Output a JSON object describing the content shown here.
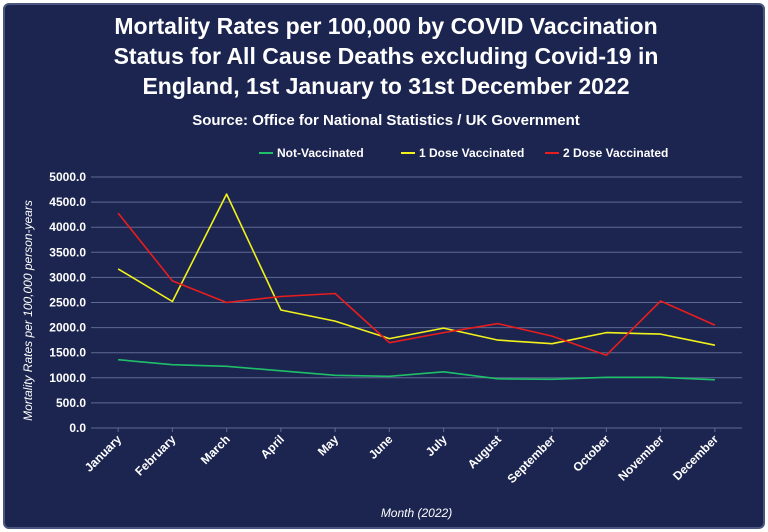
{
  "colors": {
    "background": "#1b2550",
    "grid": "#5f6a92",
    "text": "#ffffff"
  },
  "chart_data": {
    "type": "line",
    "title_lines": [
      "Mortality Rates per 100,000 by COVID Vaccination",
      "Status for All Cause Deaths excluding Covid-19 in",
      "England, 1st January to 31st December 2022"
    ],
    "subtitle": "Source: Office for National Statistics / UK Government",
    "xlabel": "Month (2022)",
    "ylabel": "Mortality Rates per 100,000 person-years",
    "categories": [
      "January",
      "February",
      "March",
      "April",
      "May",
      "June",
      "July",
      "August",
      "September",
      "October",
      "November",
      "December"
    ],
    "ylim": [
      0,
      5000
    ],
    "yticks": [
      "0.0",
      "500.0",
      "1000.0",
      "1500.0",
      "2000.0",
      "2500.0",
      "3000.0",
      "3500.0",
      "4000.0",
      "4500.0",
      "5000.0"
    ],
    "grid": true,
    "legend_position": "top",
    "series": [
      {
        "name": "Not-Vaccinated",
        "color": "#1fbf6a",
        "values": [
          1360,
          1260,
          1230,
          1140,
          1050,
          1030,
          1120,
          980,
          970,
          1010,
          1010,
          960
        ]
      },
      {
        "name": "1 Dose Vaccinated",
        "color": "#f2f21a",
        "values": [
          3170,
          2520,
          4660,
          2350,
          2130,
          1780,
          1990,
          1750,
          1680,
          1900,
          1870,
          1650
        ]
      },
      {
        "name": "2 Dose Vaccinated",
        "color": "#e81d1d",
        "values": [
          4280,
          2930,
          2500,
          2620,
          2680,
          1700,
          1900,
          2080,
          1830,
          1450,
          2530,
          2050
        ]
      }
    ]
  }
}
